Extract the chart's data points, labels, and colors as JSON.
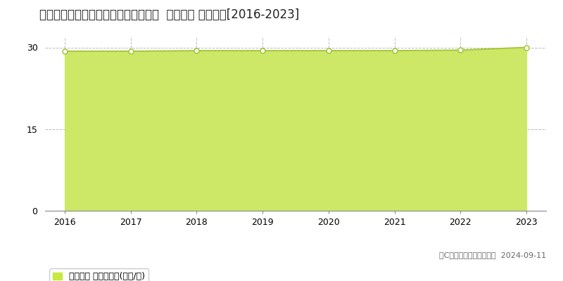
{
  "title": "滋賀県大津市本堅田４丁目１９番４外  地価公示 地価推移[2016-2023]",
  "years": [
    2016,
    2017,
    2018,
    2019,
    2020,
    2021,
    2022,
    2023
  ],
  "values": [
    29.3,
    29.3,
    29.4,
    29.4,
    29.4,
    29.4,
    29.5,
    30.0
  ],
  "line_color": "#a8c840",
  "fill_color": "#cce866",
  "marker_facecolor": "#ffffff",
  "marker_edgecolor": "#a8c840",
  "grid_color": "#bbbbbb",
  "background_color": "#ffffff",
  "plot_bg_color": "#ffffff",
  "ylim": [
    0,
    32
  ],
  "yticks": [
    0,
    15,
    30
  ],
  "xlabel": "",
  "ylabel": "",
  "legend_label": "地価公示 平均啶単価(万円/啶)",
  "legend_square_color": "#c8e840",
  "copyright_text": "（C）土地価格ドットコム  2024-09-11",
  "title_fontsize": 12,
  "tick_fontsize": 9,
  "legend_fontsize": 9,
  "copyright_fontsize": 8
}
